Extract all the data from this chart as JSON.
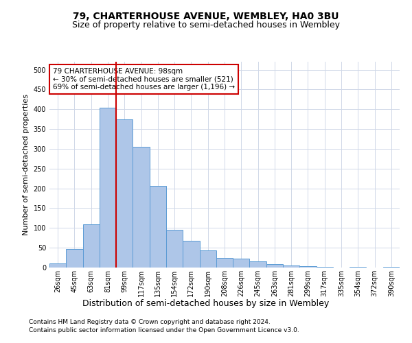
{
  "title": "79, CHARTERHOUSE AVENUE, WEMBLEY, HA0 3BU",
  "subtitle": "Size of property relative to semi-detached houses in Wembley",
  "xlabel": "Distribution of semi-detached houses by size in Wembley",
  "ylabel": "Number of semi-detached properties",
  "categories": [
    "26sqm",
    "45sqm",
    "63sqm",
    "81sqm",
    "99sqm",
    "117sqm",
    "135sqm",
    "154sqm",
    "172sqm",
    "190sqm",
    "208sqm",
    "226sqm",
    "245sqm",
    "263sqm",
    "281sqm",
    "299sqm",
    "317sqm",
    "335sqm",
    "354sqm",
    "372sqm",
    "390sqm"
  ],
  "values": [
    11,
    47,
    110,
    404,
    375,
    305,
    207,
    95,
    68,
    43,
    25,
    23,
    15,
    9,
    5,
    3,
    1,
    0,
    1,
    0,
    2
  ],
  "bar_color": "#aec6e8",
  "bar_edge_color": "#5b9bd5",
  "vline_x": 3.5,
  "vline_color": "#cc0000",
  "annotation_title": "79 CHARTERHOUSE AVENUE: 98sqm",
  "annotation_line1": "← 30% of semi-detached houses are smaller (521)",
  "annotation_line2": "69% of semi-detached houses are larger (1,196) →",
  "annotation_box_color": "#ffffff",
  "annotation_edge_color": "#cc0000",
  "footer_line1": "Contains HM Land Registry data © Crown copyright and database right 2024.",
  "footer_line2": "Contains public sector information licensed under the Open Government Licence v3.0.",
  "ylim": [
    0,
    520
  ],
  "yticks": [
    0,
    50,
    100,
    150,
    200,
    250,
    300,
    350,
    400,
    450,
    500
  ],
  "background_color": "#ffffff",
  "grid_color": "#d0d8e8",
  "title_fontsize": 10,
  "subtitle_fontsize": 9,
  "ylabel_fontsize": 8,
  "xlabel_fontsize": 9,
  "tick_fontsize": 7,
  "annotation_fontsize": 7.5,
  "footer_fontsize": 6.5
}
